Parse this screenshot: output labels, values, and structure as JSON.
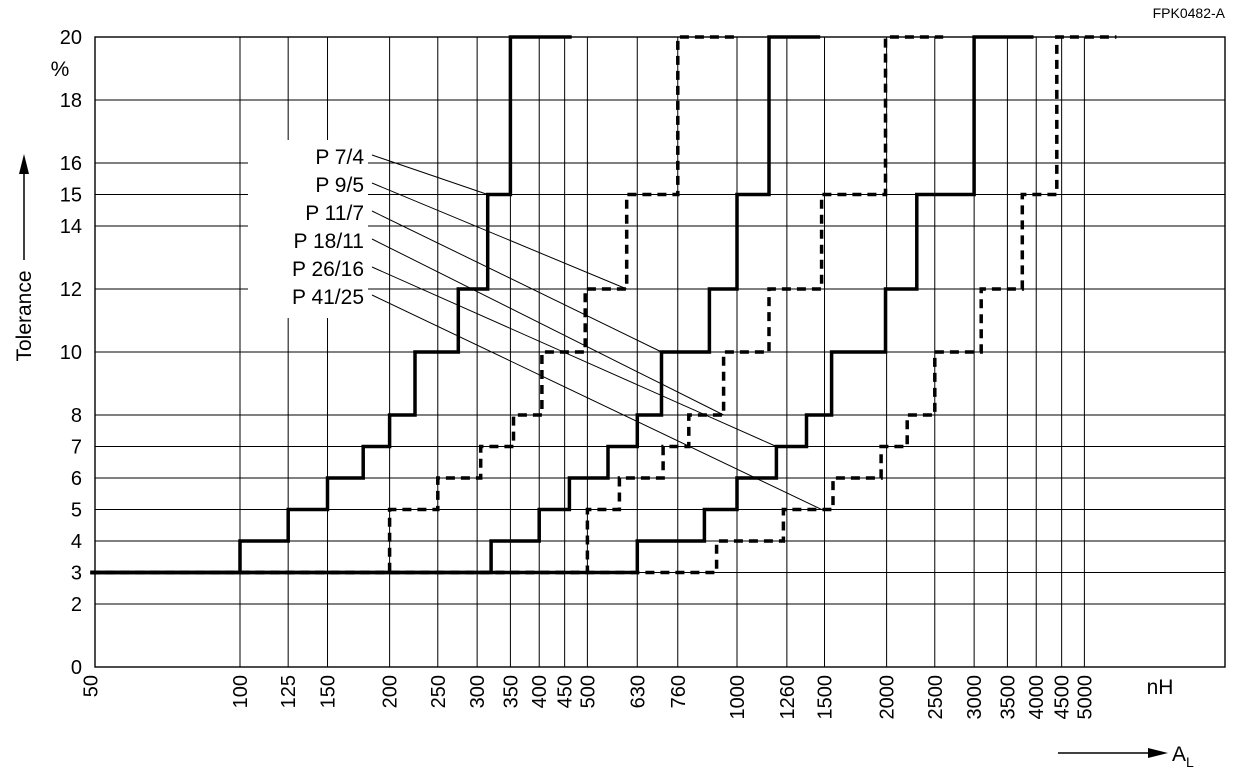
{
  "chart_data": {
    "type": "line",
    "figure_code": "FPK0482-A",
    "ylabel": "Tolerance",
    "y_unit": "%",
    "x_unit": "nH",
    "xlabel_main": "A",
    "xlabel_sub": "L",
    "x_scale": "log",
    "ylim": [
      0,
      20
    ],
    "xlim": [
      50,
      6000
    ],
    "grid": true,
    "y_ticks": [
      0,
      2,
      3,
      4,
      5,
      6,
      7,
      8,
      10,
      12,
      14,
      15,
      16,
      18,
      20
    ],
    "x_ticks": [
      50,
      100,
      125,
      150,
      200,
      250,
      300,
      350,
      400,
      450,
      500,
      630,
      760,
      1000,
      1260,
      1500,
      2000,
      2500,
      3000,
      3500,
      4000,
      4500,
      5000
    ],
    "series_labels": [
      "P 7/4",
      "P 9/5",
      "P 11/7",
      "P 18/11",
      "P 26/16",
      "P 41/25"
    ],
    "series": [
      {
        "name": "P 7/4",
        "style": "solid",
        "points": [
          [
            50,
            3
          ],
          [
            100,
            3
          ],
          [
            100,
            4
          ],
          [
            125,
            4
          ],
          [
            125,
            5
          ],
          [
            150,
            5
          ],
          [
            150,
            6
          ],
          [
            177,
            6
          ],
          [
            177,
            7
          ],
          [
            200,
            7
          ],
          [
            200,
            8
          ],
          [
            225,
            8
          ],
          [
            225,
            10
          ],
          [
            275,
            10
          ],
          [
            275,
            12
          ],
          [
            315,
            12
          ],
          [
            315,
            15
          ],
          [
            350,
            15
          ],
          [
            350,
            20
          ],
          [
            465,
            20
          ]
        ]
      },
      {
        "name": "P 9/5",
        "style": "dashed",
        "points": [
          [
            50,
            3
          ],
          [
            200,
            3
          ],
          [
            200,
            5
          ],
          [
            250,
            5
          ],
          [
            250,
            6
          ],
          [
            305,
            6
          ],
          [
            305,
            7
          ],
          [
            355,
            7
          ],
          [
            355,
            8
          ],
          [
            405,
            8
          ],
          [
            405,
            10
          ],
          [
            495,
            10
          ],
          [
            495,
            12
          ],
          [
            600,
            12
          ],
          [
            600,
            15
          ],
          [
            760,
            15
          ],
          [
            760,
            20
          ],
          [
            1000,
            20
          ]
        ]
      },
      {
        "name": "P 11/7",
        "style": "solid",
        "points": [
          [
            50,
            3
          ],
          [
            320,
            3
          ],
          [
            320,
            4
          ],
          [
            400,
            4
          ],
          [
            400,
            5
          ],
          [
            460,
            5
          ],
          [
            460,
            6
          ],
          [
            550,
            6
          ],
          [
            550,
            7
          ],
          [
            630,
            7
          ],
          [
            630,
            8
          ],
          [
            705,
            8
          ],
          [
            705,
            10
          ],
          [
            880,
            10
          ],
          [
            880,
            12
          ],
          [
            1000,
            12
          ],
          [
            1000,
            15
          ],
          [
            1160,
            15
          ],
          [
            1160,
            20
          ],
          [
            1470,
            20
          ]
        ]
      },
      {
        "name": "P 18/11",
        "style": "dashed",
        "points": [
          [
            50,
            3
          ],
          [
            500,
            3
          ],
          [
            500,
            5
          ],
          [
            580,
            5
          ],
          [
            580,
            6
          ],
          [
            710,
            6
          ],
          [
            710,
            7
          ],
          [
            800,
            7
          ],
          [
            800,
            8
          ],
          [
            940,
            8
          ],
          [
            940,
            10
          ],
          [
            1160,
            10
          ],
          [
            1160,
            12
          ],
          [
            1480,
            12
          ],
          [
            1480,
            15
          ],
          [
            1990,
            15
          ],
          [
            1990,
            20
          ],
          [
            2600,
            20
          ]
        ]
      },
      {
        "name": "P 26/16",
        "style": "solid",
        "points": [
          [
            50,
            3
          ],
          [
            630,
            3
          ],
          [
            630,
            4
          ],
          [
            860,
            4
          ],
          [
            860,
            5
          ],
          [
            1000,
            5
          ],
          [
            1000,
            6
          ],
          [
            1200,
            6
          ],
          [
            1200,
            7
          ],
          [
            1380,
            7
          ],
          [
            1380,
            8
          ],
          [
            1550,
            8
          ],
          [
            1550,
            10
          ],
          [
            1990,
            10
          ],
          [
            1990,
            12
          ],
          [
            2300,
            12
          ],
          [
            2300,
            15
          ],
          [
            3000,
            15
          ],
          [
            3000,
            20
          ],
          [
            3950,
            20
          ]
        ]
      },
      {
        "name": "P 41/25",
        "style": "dashed",
        "points": [
          [
            50,
            3
          ],
          [
            910,
            3
          ],
          [
            910,
            4
          ],
          [
            1240,
            4
          ],
          [
            1240,
            5
          ],
          [
            1560,
            5
          ],
          [
            1560,
            6
          ],
          [
            1950,
            6
          ],
          [
            1950,
            7
          ],
          [
            2200,
            7
          ],
          [
            2200,
            8
          ],
          [
            2500,
            8
          ],
          [
            2500,
            10
          ],
          [
            3100,
            10
          ],
          [
            3100,
            12
          ],
          [
            3750,
            12
          ],
          [
            3750,
            15
          ],
          [
            4400,
            15
          ],
          [
            4400,
            20
          ],
          [
            5800,
            20
          ]
        ]
      }
    ],
    "leaders": [
      {
        "label": "P 7/4",
        "to": [
          315,
          15
        ]
      },
      {
        "label": "P 9/5",
        "to": [
          600,
          12
        ]
      },
      {
        "label": "P 11/7",
        "to": [
          705,
          10
        ]
      },
      {
        "label": "P 18/11",
        "to": [
          940,
          8
        ]
      },
      {
        "label": "P 26/16",
        "to": [
          1200,
          7
        ]
      },
      {
        "label": "P 41/25",
        "to": [
          1480,
          5
        ]
      }
    ]
  }
}
